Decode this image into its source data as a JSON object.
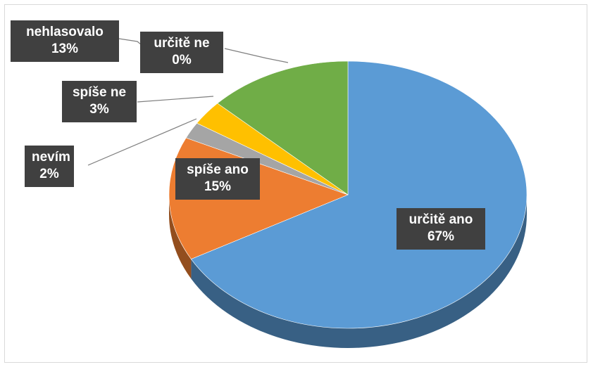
{
  "chart_data": {
    "type": "pie",
    "style": "3d",
    "title": "",
    "categories": [
      "určitě ano",
      "spíše ano",
      "nevím",
      "spíše ne",
      "určitě ne",
      "nehlasovalo"
    ],
    "values": [
      67,
      15,
      2,
      3,
      0,
      13
    ],
    "value_labels": [
      "67%",
      "15%",
      "2%",
      "3%",
      "0%",
      "13%"
    ],
    "colors": [
      "#5b9bd5",
      "#ed7d31",
      "#a5a5a5",
      "#ffc000",
      "#4472c4",
      "#70ad47"
    ],
    "label_style": "dark callout boxes with leader lines",
    "legend": "none"
  }
}
